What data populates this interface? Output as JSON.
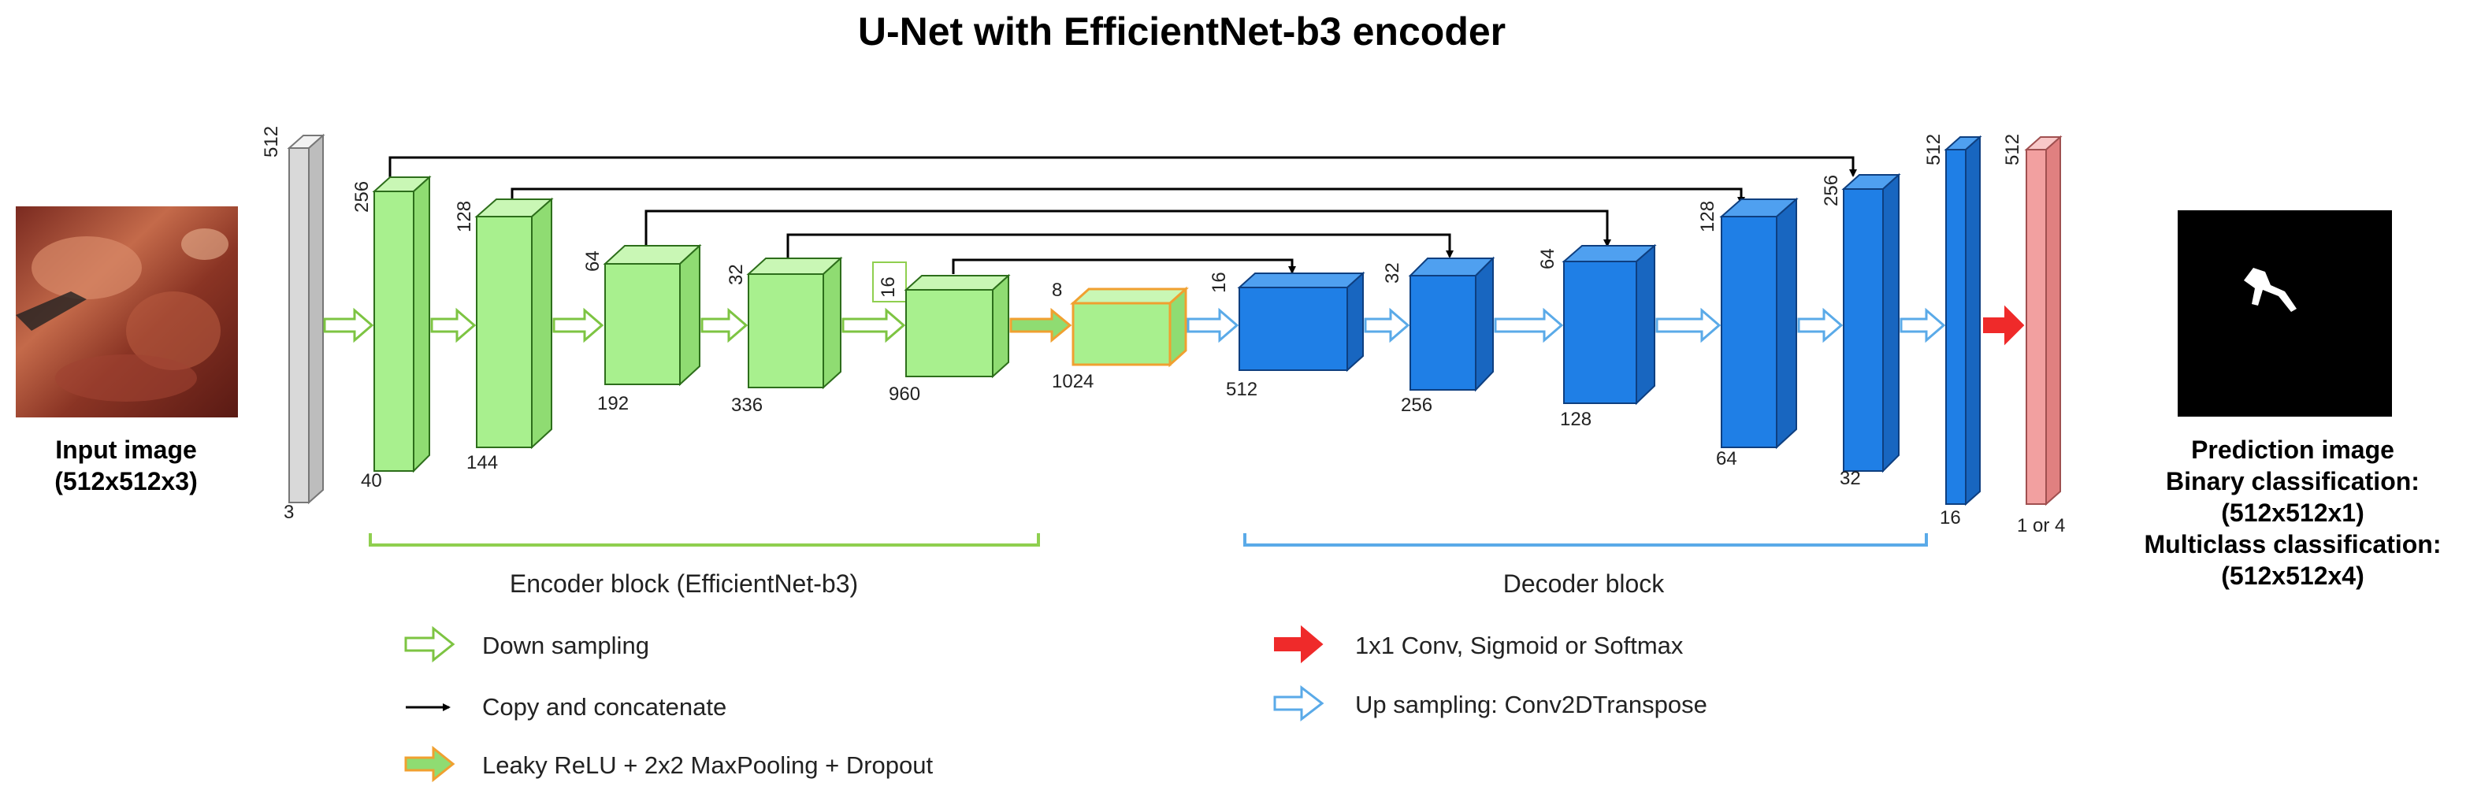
{
  "title": "U-Net with EfficientNet-b3 encoder",
  "input_image": {
    "label_line1": "Input image",
    "label_line2": "(512x512x3)"
  },
  "prediction_image": {
    "line1": "Prediction image",
    "line2": "Binary classification:",
    "line3": "(512x512x1)",
    "line4": "Multiclass classification:",
    "line5": "(512x512x4)"
  },
  "blocks": {
    "input": {
      "height": "512",
      "channels": "3"
    },
    "enc1": {
      "height": "256",
      "channels": "40"
    },
    "enc2": {
      "height": "128",
      "channels": "144"
    },
    "enc3": {
      "height": "64",
      "channels": "192"
    },
    "enc4": {
      "height": "32",
      "channels": "336"
    },
    "enc5": {
      "height": "16",
      "channels": "960"
    },
    "bottleneck": {
      "height": "8",
      "channels": "1024"
    },
    "dec1": {
      "height": "16",
      "channels": "512"
    },
    "dec2": {
      "height": "32",
      "channels": "256"
    },
    "dec3": {
      "height": "64",
      "channels": "128"
    },
    "dec4": {
      "height": "128",
      "channels": "64"
    },
    "dec5": {
      "height": "256",
      "channels": "32"
    },
    "dec6": {
      "height": "512",
      "channels": "16"
    },
    "output": {
      "height": "512",
      "channels": "1 or 4"
    }
  },
  "sections": {
    "encoder": "Encoder block (EfficientNet-b3)",
    "decoder": "Decoder block"
  },
  "legend": {
    "down_sampling": "Down sampling",
    "copy_concat": "Copy and concatenate",
    "leaky": "Leaky ReLU + 2x2 MaxPooling + Dropout",
    "conv": "1x1 Conv, Sigmoid or Softmax",
    "up_sampling": "Up sampling: Conv2DTranspose"
  },
  "colors": {
    "encoder_fill": "#a8f08e",
    "encoder_stroke": "#2d6e1b",
    "decoder_fill": "#1f7fe6",
    "decoder_stroke": "#0e3f80",
    "input_fill": "#d9d9d9",
    "output_fill": "#f2a0a0",
    "down_arrow": "#7dc442",
    "up_arrow": "#5aaae8",
    "orange": "#f0a030",
    "red_arrow": "#ef2a2a",
    "bracket_green": "#8fcf4f",
    "bracket_blue": "#5aaae8"
  },
  "icons": {
    "down": "hollow-green-arrow",
    "up": "hollow-blue-arrow",
    "copy": "black-thin-arrow",
    "leaky": "orange-outlined-green-arrow",
    "conv": "solid-red-arrow"
  }
}
